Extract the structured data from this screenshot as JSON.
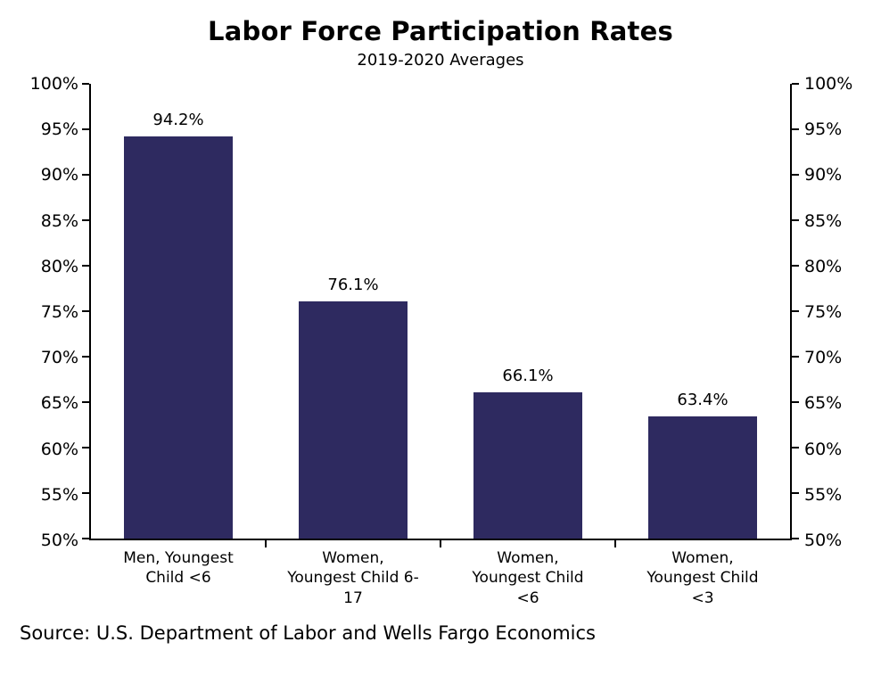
{
  "chart_data": {
    "type": "bar",
    "title": "Labor Force Participation Rates",
    "subtitle": "2019-2020 Averages",
    "categories": [
      "Men, Youngest Child <6",
      "Women, Youngest Child 6-17",
      "Women, Youngest Child <6",
      "Women, Youngest Child <3"
    ],
    "category_labels": [
      "Men, Youngest\nChild <6",
      "Women,\nYoungest Child 6-\n17",
      "Women,\nYoungest Child\n<6",
      "Women,\nYoungest Child\n<3"
    ],
    "values": [
      94.2,
      76.1,
      66.1,
      63.4
    ],
    "value_labels": [
      "94.2%",
      "76.1%",
      "66.1%",
      "63.4%"
    ],
    "ylim": [
      50,
      100
    ],
    "ytick_step": 5,
    "ytick_labels": [
      "100%",
      "95%",
      "90%",
      "85%",
      "80%",
      "75%",
      "70%",
      "65%",
      "60%",
      "55%",
      "50%"
    ],
    "grid": false,
    "legend": "none",
    "bar_color": "#2e2a60",
    "axis_color": "#000000",
    "source": "Source: U.S. Department of Labor and Wells Fargo Economics"
  }
}
